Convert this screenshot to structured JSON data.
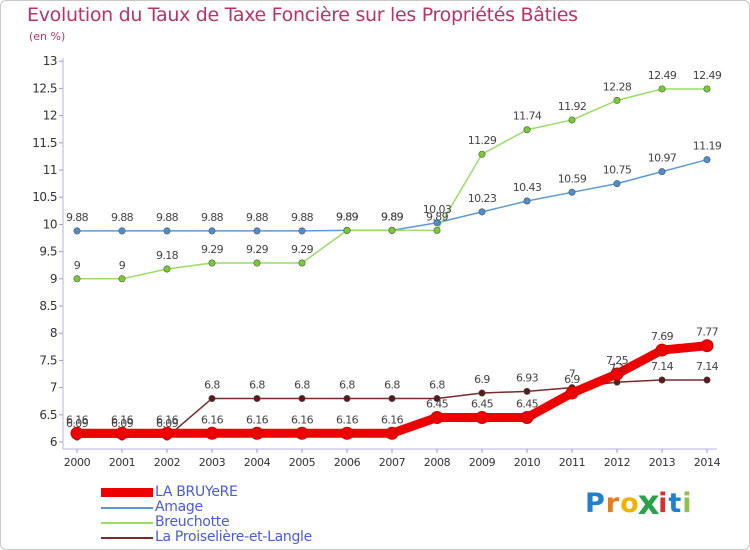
{
  "chart_data": {
    "type": "line",
    "title": "Evolution du Taux de Taxe Foncière sur les Propriétés Bâties",
    "subtitle": "(en %)",
    "x": [
      "2000",
      "2001",
      "2002",
      "2003",
      "2004",
      "2005",
      "2006",
      "2007",
      "2008",
      "2009",
      "2010",
      "2011",
      "2012",
      "2013",
      "2014"
    ],
    "ylim": [
      6,
      13
    ],
    "yticks": [
      "6",
      "6.5",
      "7",
      "7.5",
      "8",
      "8.5",
      "9",
      "9.5",
      "10",
      "10.5",
      "11",
      "11.5",
      "12",
      "12.5",
      "13"
    ],
    "grid": false,
    "legend_position": "bottom-left",
    "series": [
      {
        "name": "LA BRUYeRE",
        "color": "#ee0000",
        "values": [
          6.16,
          6.16,
          6.16,
          6.16,
          6.16,
          6.16,
          6.16,
          6.16,
          6.45,
          6.45,
          6.45,
          6.9,
          7.25,
          7.69,
          7.77
        ],
        "labels": [
          "6.16",
          "6.16",
          "6.16",
          "6.16",
          "6.16",
          "6.16",
          "6.16",
          "6.16",
          "6.45",
          "6.45",
          "6.45",
          "6.9",
          "7.25",
          "7.69",
          "7.77"
        ]
      },
      {
        "name": "Amage",
        "color": "#5b9bd5",
        "point_color": "#4a8fd0",
        "values": [
          9.88,
          9.88,
          9.88,
          9.88,
          9.88,
          9.88,
          9.89,
          9.89,
          10.03,
          10.23,
          10.43,
          10.59,
          10.75,
          10.97,
          11.19
        ],
        "labels": [
          "9.88",
          "9.88",
          "9.88",
          "9.88",
          "9.88",
          "9.88",
          "9.89",
          "9.89",
          "10.03",
          "10.23",
          "10.43",
          "10.59",
          "10.75",
          "10.97",
          "11.19"
        ]
      },
      {
        "name": "Breuchotte",
        "color": "#99dd66",
        "point_color": "#77cc33",
        "values": [
          9,
          9,
          9.18,
          9.29,
          9.29,
          9.29,
          9.89,
          9.89,
          9.89,
          11.29,
          11.74,
          11.92,
          12.28,
          12.49,
          12.49
        ],
        "labels": [
          "9",
          "9",
          "9.18",
          "9.29",
          "9.29",
          "9.29",
          "9.89",
          "9.89",
          "9.89",
          "11.29",
          "11.74",
          "11.92",
          "12.28",
          "12.49",
          "12.49"
        ]
      },
      {
        "name": "La Proiselière-et-Langle",
        "color": "#7a2a2a",
        "point_color": "#5a1a1a",
        "values": [
          6.09,
          6.09,
          6.09,
          6.8,
          6.8,
          6.8,
          6.8,
          6.8,
          6.8,
          6.9,
          6.93,
          7,
          7.1,
          7.14,
          7.14
        ],
        "labels": [
          "6.09",
          "6.09",
          "6.09",
          "6.8",
          "6.8",
          "6.8",
          "6.8",
          "6.8",
          "6.8",
          "6.9",
          "6.93",
          "7",
          "7.1",
          "7.14",
          "7.14"
        ]
      }
    ]
  },
  "logo": {
    "letters": [
      "P",
      "r",
      "o",
      "x",
      "i",
      "t",
      "i"
    ],
    "colors": [
      "#1f7fd1",
      "#e87b1a",
      "#f0b400",
      "#2ba14a",
      "#d62f2f",
      "#1f7fd1",
      "#8bc34a"
    ]
  }
}
